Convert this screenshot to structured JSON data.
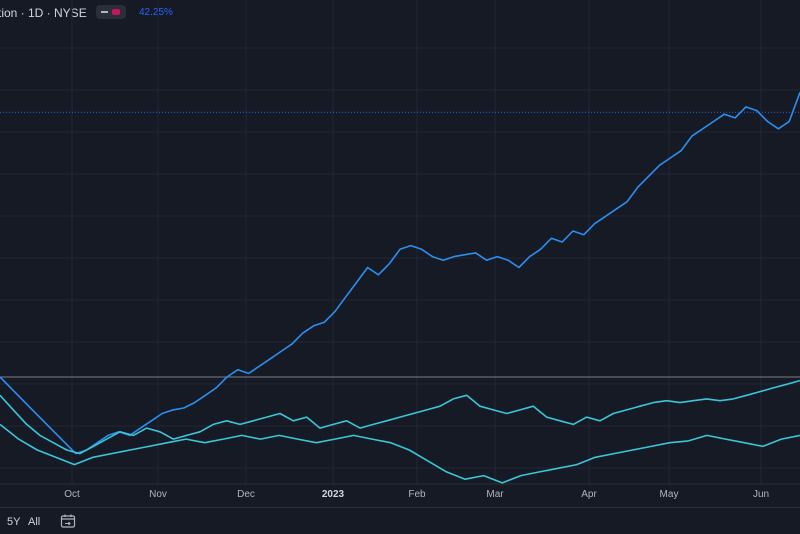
{
  "header": {
    "title": "tion · 1D · NYSE",
    "percent": "42.25%"
  },
  "colors": {
    "background": "#161a25",
    "grid": "#232734",
    "series_blue": "#2a8ff0",
    "series_cyan": "#3bc5d6",
    "reference_line": "#7a7d86",
    "dotted_line": "#2962ff"
  },
  "chart_data": {
    "type": "line",
    "xlabels": [
      "Oct",
      "Nov",
      "Dec",
      "2023",
      "Feb",
      "Mar",
      "Apr",
      "May",
      "Jun"
    ],
    "series": [
      {
        "values": [
          0.0,
          -3.0,
          -6.0,
          -9.0,
          -12.0,
          -15.0,
          -18.0,
          -21.0,
          -20.0,
          -18.0,
          -16.0,
          -15.0,
          -16.0,
          -14.0,
          -12.0,
          -10.0,
          -9.0,
          -8.5,
          -7.0,
          -5.0,
          -3.0,
          0.0,
          2.0,
          1.0,
          3.0,
          5.0,
          7.0,
          9.0,
          12.0,
          14.0,
          15.0,
          18.0,
          22.0,
          26.0,
          30.0,
          28.0,
          31.0,
          35.0,
          36.0,
          35.0,
          33.0,
          32.0,
          33.0,
          33.5,
          34.0,
          32.0,
          33.0,
          32.0,
          30.0,
          33.0,
          35.0,
          38.0,
          37.0,
          40.0,
          39.0,
          42.0,
          44.0,
          46.0,
          48.0,
          52.0,
          55.0,
          58.0,
          60.0,
          62.0,
          66.0,
          68.0,
          70.0,
          72.0,
          71.0,
          74.0,
          73.0,
          70.0,
          68.0,
          70.0,
          78.0
        ]
      },
      {
        "values": [
          -5.0,
          -9.0,
          -13.0,
          -16.0,
          -18.0,
          -20.0,
          -21.0,
          -19.0,
          -17.0,
          -15.0,
          -16.0,
          -14.0,
          -15.0,
          -17.0,
          -16.0,
          -15.0,
          -13.0,
          -12.0,
          -13.0,
          -12.0,
          -11.0,
          -10.0,
          -12.0,
          -11.0,
          -14.0,
          -13.0,
          -12.0,
          -14.0,
          -13.0,
          -12.0,
          -11.0,
          -10.0,
          -9.0,
          -8.0,
          -6.0,
          -5.0,
          -8.0,
          -9.0,
          -10.0,
          -9.0,
          -8.0,
          -11.0,
          -12.0,
          -13.0,
          -11.0,
          -12.0,
          -10.0,
          -9.0,
          -8.0,
          -7.0,
          -6.5,
          -7.0,
          -6.5,
          -6.0,
          -6.5,
          -6.0,
          -5.0,
          -4.0,
          -3.0,
          -2.0,
          -1.0
        ]
      },
      {
        "values": [
          -13.0,
          -17.0,
          -20.0,
          -22.0,
          -24.0,
          -22.0,
          -21.0,
          -20.0,
          -19.0,
          -18.0,
          -17.0,
          -18.0,
          -17.0,
          -16.0,
          -17.0,
          -16.0,
          -17.0,
          -18.0,
          -17.0,
          -16.0,
          -17.0,
          -18.0,
          -20.0,
          -23.0,
          -26.0,
          -28.0,
          -27.0,
          -29.0,
          -27.0,
          -26.0,
          -25.0,
          -24.0,
          -22.0,
          -21.0,
          -20.0,
          -19.0,
          -18.0,
          -17.5,
          -16.0,
          -17.0,
          -18.0,
          -19.0,
          -17.0,
          -16.0
        ]
      }
    ],
    "grid": true
  },
  "bottombar": {
    "range_5y": "5Y",
    "range_all": "All"
  }
}
